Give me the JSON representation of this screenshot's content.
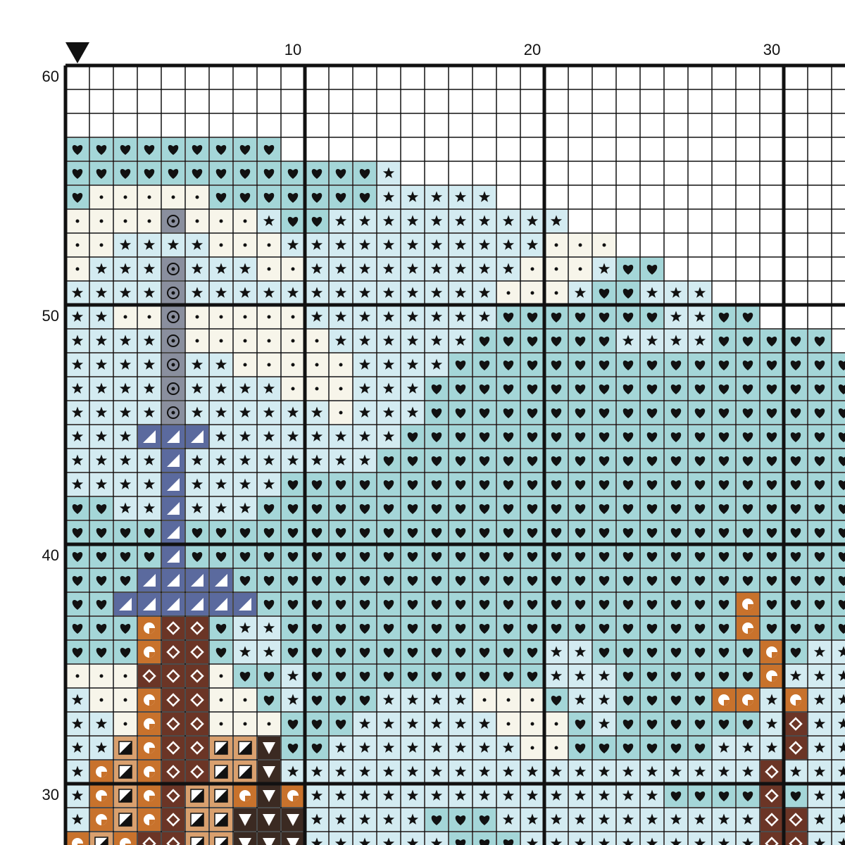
{
  "top_axis": {
    "labels": [
      "10",
      "20",
      "30"
    ]
  },
  "left_axis": {
    "labels": [
      "60",
      "50",
      "40",
      "30"
    ]
  }
}
